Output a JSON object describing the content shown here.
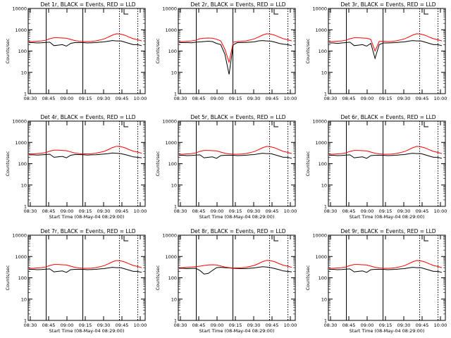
{
  "chart_data": [
    {
      "type": "line",
      "title": "Det 1r, BLACK = Events, RED = LLD",
      "xlabel": "",
      "ylabel": "Counts/sec",
      "yscale": "log",
      "ylim": [
        1,
        10000
      ],
      "x_ticks": [
        "08:30",
        "08:45",
        "09:00",
        "09:15",
        "09:30",
        "09:45",
        "10:00"
      ],
      "series": [
        {
          "color": "#000000",
          "values": [
            250,
            250,
            240,
            245,
            255,
            260,
            180,
            190,
            200,
            170,
            230,
            250,
            250,
            250,
            240,
            245,
            250,
            260,
            270,
            290,
            310,
            300,
            300,
            260,
            230,
            200,
            200,
            180
          ]
        },
        {
          "color": "#ff0000",
          "values": [
            280,
            280,
            290,
            300,
            320,
            380,
            420,
            420,
            410,
            400,
            350,
            310,
            290,
            280,
            280,
            285,
            300,
            330,
            370,
            450,
            560,
            650,
            620,
            550,
            450,
            380,
            340,
            300
          ]
        }
      ]
    },
    {
      "type": "line",
      "title": "Det 2r, BLACK = Events, RED = LLD",
      "xlabel": "",
      "ylabel": "Counts/sec",
      "yscale": "log",
      "ylim": [
        1,
        10000
      ],
      "x_ticks": [
        "08:30",
        "08:45",
        "09:00",
        "09:15",
        "09:30",
        "09:45",
        "10:00"
      ],
      "series": [
        {
          "color": "#000000",
          "values": [
            250,
            250,
            250,
            245,
            260,
            270,
            280,
            290,
            280,
            230,
            200,
            70,
            8,
            200,
            250,
            250,
            255,
            260,
            270,
            300,
            310,
            300,
            290,
            260,
            230,
            210,
            200,
            180
          ]
        },
        {
          "color": "#ff0000",
          "values": [
            280,
            280,
            290,
            300,
            320,
            380,
            400,
            410,
            400,
            360,
            300,
            120,
            30,
            260,
            280,
            290,
            300,
            330,
            370,
            450,
            560,
            650,
            620,
            550,
            450,
            380,
            340,
            300
          ]
        }
      ]
    },
    {
      "type": "line",
      "title": "Det 3r, BLACK = Events, RED = LLD",
      "xlabel": "",
      "ylabel": "Counts/sec",
      "yscale": "log",
      "ylim": [
        1,
        10000
      ],
      "x_ticks": [
        "08:30",
        "08:45",
        "09:00",
        "09:15",
        "09:30",
        "09:45",
        "10:00"
      ],
      "series": [
        {
          "color": "#000000",
          "values": [
            240,
            240,
            230,
            240,
            250,
            260,
            180,
            190,
            200,
            170,
            230,
            45,
            200,
            240,
            240,
            245,
            250,
            260,
            270,
            290,
            310,
            300,
            300,
            260,
            230,
            200,
            200,
            180
          ]
        },
        {
          "color": "#ff0000",
          "values": [
            280,
            280,
            290,
            300,
            320,
            380,
            420,
            420,
            410,
            400,
            350,
            100,
            280,
            290,
            280,
            285,
            300,
            330,
            370,
            450,
            560,
            650,
            620,
            550,
            450,
            380,
            340,
            300
          ]
        }
      ]
    },
    {
      "type": "line",
      "title": "Det 4r, BLACK = Events, RED = LLD",
      "xlabel": "Start Time (08-May-04 08:29:00)",
      "ylabel": "Counts/sec",
      "yscale": "log",
      "ylim": [
        1,
        10000
      ],
      "x_ticks": [
        "08:30",
        "08:45",
        "09:00",
        "09:15",
        "09:30",
        "09:45",
        "10:00"
      ],
      "series": [
        {
          "color": "#000000",
          "values": [
            260,
            260,
            255,
            260,
            270,
            280,
            200,
            210,
            220,
            190,
            250,
            270,
            270,
            265,
            255,
            260,
            265,
            275,
            285,
            300,
            320,
            310,
            300,
            270,
            240,
            210,
            200,
            190
          ]
        },
        {
          "color": "#ff0000",
          "values": [
            290,
            290,
            300,
            310,
            330,
            390,
            430,
            430,
            420,
            410,
            360,
            320,
            300,
            290,
            290,
            295,
            310,
            340,
            380,
            460,
            570,
            660,
            630,
            560,
            460,
            390,
            350,
            310
          ]
        }
      ]
    },
    {
      "type": "line",
      "title": "Det 5r, BLACK = Events, RED = LLD",
      "xlabel": "Start Time (08-May-04 08:29:00)",
      "ylabel": "Counts/sec",
      "yscale": "log",
      "ylim": [
        1,
        10000
      ],
      "x_ticks": [
        "08:30",
        "08:45",
        "09:00",
        "09:15",
        "09:30",
        "09:45",
        "10:00"
      ],
      "series": [
        {
          "color": "#000000",
          "values": [
            250,
            250,
            240,
            245,
            255,
            260,
            190,
            200,
            210,
            180,
            240,
            250,
            250,
            250,
            240,
            245,
            250,
            260,
            270,
            290,
            310,
            300,
            300,
            260,
            230,
            200,
            200,
            180
          ]
        },
        {
          "color": "#ff0000",
          "values": [
            280,
            280,
            290,
            300,
            320,
            380,
            420,
            420,
            410,
            400,
            350,
            310,
            290,
            280,
            280,
            285,
            300,
            330,
            370,
            450,
            560,
            650,
            620,
            550,
            450,
            380,
            340,
            300
          ]
        }
      ]
    },
    {
      "type": "line",
      "title": "Det 6r, BLACK = Events, RED = LLD",
      "xlabel": "Start Time (08-May-04 08:29:00)",
      "ylabel": "Counts/sec",
      "yscale": "log",
      "ylim": [
        1,
        10000
      ],
      "x_ticks": [
        "08:30",
        "08:45",
        "09:00",
        "09:15",
        "09:30",
        "09:45",
        "10:00"
      ],
      "series": [
        {
          "color": "#000000",
          "values": [
            250,
            250,
            240,
            245,
            255,
            260,
            190,
            200,
            210,
            180,
            240,
            250,
            250,
            250,
            240,
            245,
            250,
            260,
            270,
            290,
            310,
            300,
            300,
            260,
            230,
            200,
            200,
            180
          ]
        },
        {
          "color": "#ff0000",
          "values": [
            280,
            280,
            290,
            300,
            320,
            380,
            420,
            420,
            410,
            400,
            350,
            310,
            290,
            280,
            280,
            285,
            300,
            330,
            370,
            450,
            560,
            650,
            620,
            550,
            450,
            380,
            340,
            300
          ]
        }
      ]
    },
    {
      "type": "line",
      "title": "Det 7r, BLACK = Events, RED = LLD",
      "xlabel": "Start Time (08-May-04 08:29:00)",
      "ylabel": "Counts/sec",
      "yscale": "log",
      "ylim": [
        1,
        10000
      ],
      "x_ticks": [
        "08:30",
        "08:45",
        "09:00",
        "09:15",
        "09:30",
        "09:45",
        "10:00"
      ],
      "series": [
        {
          "color": "#000000",
          "values": [
            250,
            250,
            240,
            245,
            255,
            260,
            190,
            200,
            210,
            180,
            240,
            250,
            250,
            250,
            240,
            245,
            250,
            260,
            270,
            290,
            310,
            300,
            300,
            260,
            230,
            200,
            200,
            180
          ]
        },
        {
          "color": "#ff0000",
          "values": [
            280,
            280,
            290,
            300,
            320,
            380,
            420,
            420,
            410,
            400,
            350,
            310,
            290,
            280,
            280,
            285,
            300,
            330,
            370,
            450,
            560,
            650,
            620,
            550,
            450,
            380,
            340,
            300
          ]
        }
      ]
    },
    {
      "type": "line",
      "title": "Det 8r, BLACK = Events, RED = LLD",
      "xlabel": "Start Time (08-May-04 08:29:00)",
      "ylabel": "Counts/sec",
      "yscale": "log",
      "ylim": [
        1,
        10000
      ],
      "x_ticks": [
        "08:30",
        "08:45",
        "09:00",
        "09:15",
        "09:30",
        "09:45",
        "10:00"
      ],
      "series": [
        {
          "color": "#000000",
          "values": [
            280,
            280,
            270,
            275,
            280,
            220,
            150,
            160,
            220,
            300,
            310,
            300,
            290,
            280,
            275,
            270,
            270,
            280,
            290,
            310,
            330,
            320,
            300,
            270,
            240,
            210,
            200,
            190
          ]
        },
        {
          "color": "#ff0000",
          "values": [
            300,
            300,
            310,
            320,
            330,
            350,
            380,
            400,
            410,
            400,
            360,
            320,
            300,
            290,
            290,
            295,
            310,
            340,
            380,
            460,
            570,
            660,
            630,
            560,
            460,
            390,
            350,
            310
          ]
        }
      ]
    },
    {
      "type": "line",
      "title": "Det 9r, BLACK = Events, RED = LLD",
      "xlabel": "Start Time (08-May-04 08:29:00)",
      "ylabel": "Counts/sec",
      "yscale": "log",
      "ylim": [
        1,
        10000
      ],
      "x_ticks": [
        "08:30",
        "08:45",
        "09:00",
        "09:15",
        "09:30",
        "09:45",
        "10:00"
      ],
      "series": [
        {
          "color": "#000000",
          "values": [
            250,
            250,
            240,
            245,
            255,
            260,
            190,
            200,
            210,
            180,
            240,
            250,
            250,
            250,
            240,
            245,
            250,
            260,
            270,
            290,
            310,
            300,
            300,
            260,
            230,
            200,
            200,
            180
          ]
        },
        {
          "color": "#ff0000",
          "values": [
            280,
            280,
            290,
            300,
            320,
            380,
            420,
            420,
            410,
            400,
            350,
            310,
            290,
            280,
            280,
            285,
            300,
            330,
            370,
            450,
            560,
            650,
            620,
            550,
            450,
            380,
            340,
            300
          ]
        }
      ]
    }
  ]
}
